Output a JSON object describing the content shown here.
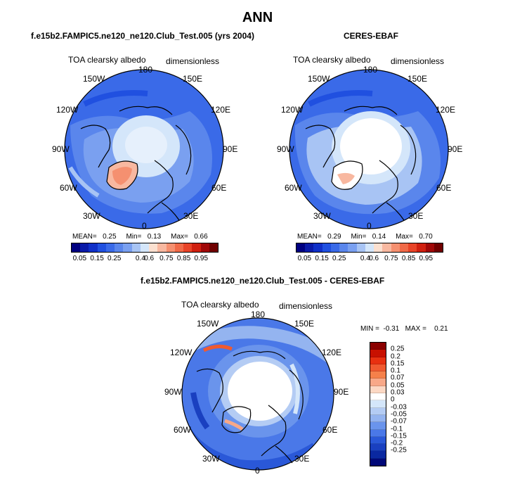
{
  "title": "ANN",
  "panels": [
    {
      "id": "test",
      "case": "f.e15b2.FAMPIC5.ne120_ne120.Club_Test.005 (yrs 2004)",
      "variable": "TOA clearsky albedo",
      "units": "dimensionless",
      "stats": {
        "mean_label": "MEAN=",
        "mean": "0.25",
        "min_label": "Min=",
        "min": "0.13",
        "max_label": "Max=",
        "max": "0.66"
      }
    },
    {
      "id": "obs",
      "case": "CERES-EBAF",
      "variable": "TOA clearsky albedo",
      "units": "dimensionless",
      "stats": {
        "mean_label": "MEAN=",
        "mean": "0.29",
        "min_label": "Min=",
        "min": "0.14",
        "max_label": "Max=",
        "max": "0.70"
      }
    },
    {
      "id": "diff",
      "case": "f.e15b2.FAMPIC5.ne120_ne120.Club_Test.005 - CERES-EBAF",
      "variable": "TOA clearsky albedo",
      "units": "dimensionless",
      "stats": {
        "min_label": "MIN =",
        "min": "-0.31",
        "max_label": "MAX =",
        "max": "0.21"
      }
    }
  ],
  "longitude_labels": [
    "180",
    "150E",
    "120E",
    "90E",
    "60E",
    "30E",
    "0",
    "30W",
    "60W",
    "90W",
    "120W",
    "150W"
  ],
  "colorbar_abs": {
    "colors": [
      "#000080",
      "#0a1aa8",
      "#1030c8",
      "#2050e0",
      "#3a6ae8",
      "#5a86ec",
      "#7aa0f0",
      "#a8c4f4",
      "#d4e6fa",
      "#fbe0d0",
      "#f8b8a0",
      "#f59070",
      "#f06a48",
      "#e84428",
      "#d02010",
      "#a00808",
      "#700000"
    ],
    "ticks": [
      "0.05",
      "0.15",
      "0.25",
      "0.4",
      "0.6",
      "0.75",
      "0.85",
      "0.95"
    ]
  },
  "colorbar_diff": {
    "colors": [
      "#8a0000",
      "#c81000",
      "#e83010",
      "#f05a30",
      "#f5804a",
      "#f8a888",
      "#fcd8c4",
      "#ffffff",
      "#d4e6fa",
      "#b4ccf4",
      "#94b4f0",
      "#6a94ec",
      "#4a78e8",
      "#2a58d8",
      "#1a40c0",
      "#0a28a0",
      "#000878"
    ],
    "ticks": [
      "0.25",
      "0.2",
      "0.15",
      "0.1",
      "0.07",
      "0.05",
      "0.03",
      "0",
      "-0.03",
      "-0.05",
      "-0.07",
      "-0.1",
      "-0.15",
      "-0.2",
      "-0.25"
    ]
  }
}
